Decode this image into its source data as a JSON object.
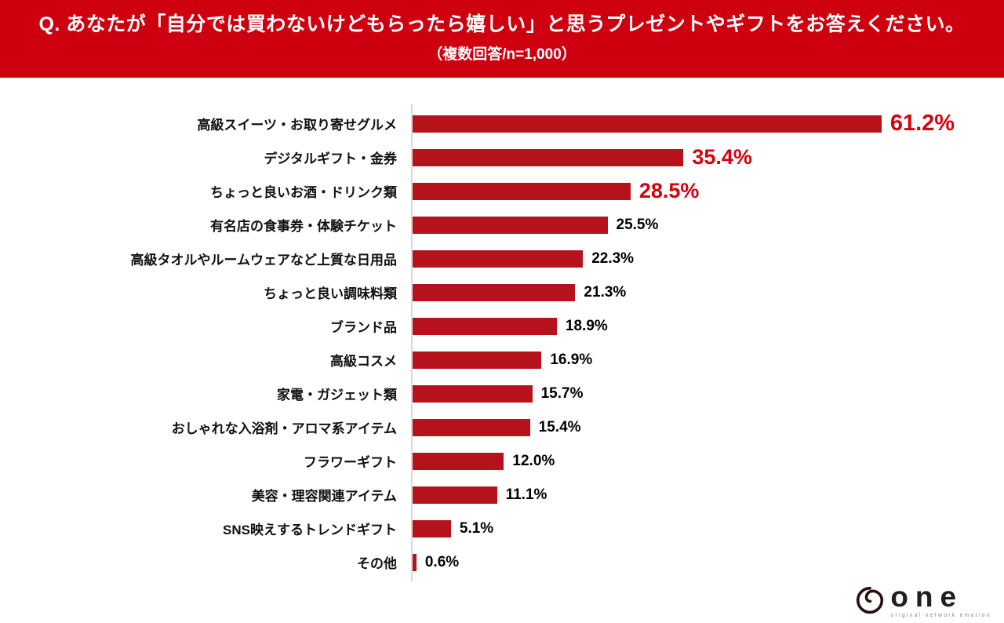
{
  "header": {
    "question": "Q. あなたが「自分では買わないけどもらったら嬉しい」と思うプレゼントやギフトをお答えください。",
    "note": "（複数回答/n=1,000）"
  },
  "chart_data": {
    "type": "bar",
    "orientation": "horizontal",
    "title": "",
    "categories": [
      "高級スイーツ・お取り寄せグルメ",
      "デジタルギフト・金券",
      "ちょっと良いお酒・ドリンク類",
      "有名店の食事券・体験チケット",
      "高級タオルやルームウェアなど上質な日用品",
      "ちょっと良い調味料類",
      "ブランド品",
      "高級コスメ",
      "家電・ガジェット類",
      "おしゃれな入浴剤・アロマ系アイテム",
      "フラワーギフト",
      "美容・理容関連アイテム",
      "SNS映えするトレンドギフト",
      "その他"
    ],
    "values": [
      61.2,
      35.4,
      28.5,
      25.5,
      22.3,
      21.3,
      18.9,
      16.9,
      15.7,
      15.4,
      12.0,
      11.1,
      5.1,
      0.6
    ],
    "value_labels": [
      "61.2%",
      "35.4%",
      "28.5%",
      "25.5%",
      "22.3%",
      "21.3%",
      "18.9%",
      "16.9%",
      "15.7%",
      "15.4%",
      "12.0%",
      "11.1%",
      "5.1%",
      "0.6%"
    ],
    "highlight_top_n": 3,
    "xlim": [
      0,
      65
    ],
    "grid": false,
    "legend": "none",
    "bar_color": "#b5121b",
    "highlight_value_color": "#d7000f",
    "value_color": "#000000"
  },
  "logo": {
    "icon": "spiral-icon",
    "text": "one",
    "tagline": "original network emotion"
  },
  "colors": {
    "banner_bg": "#ce0010",
    "banner_text": "#ffffff",
    "axis_line": "#d9d9d9"
  }
}
